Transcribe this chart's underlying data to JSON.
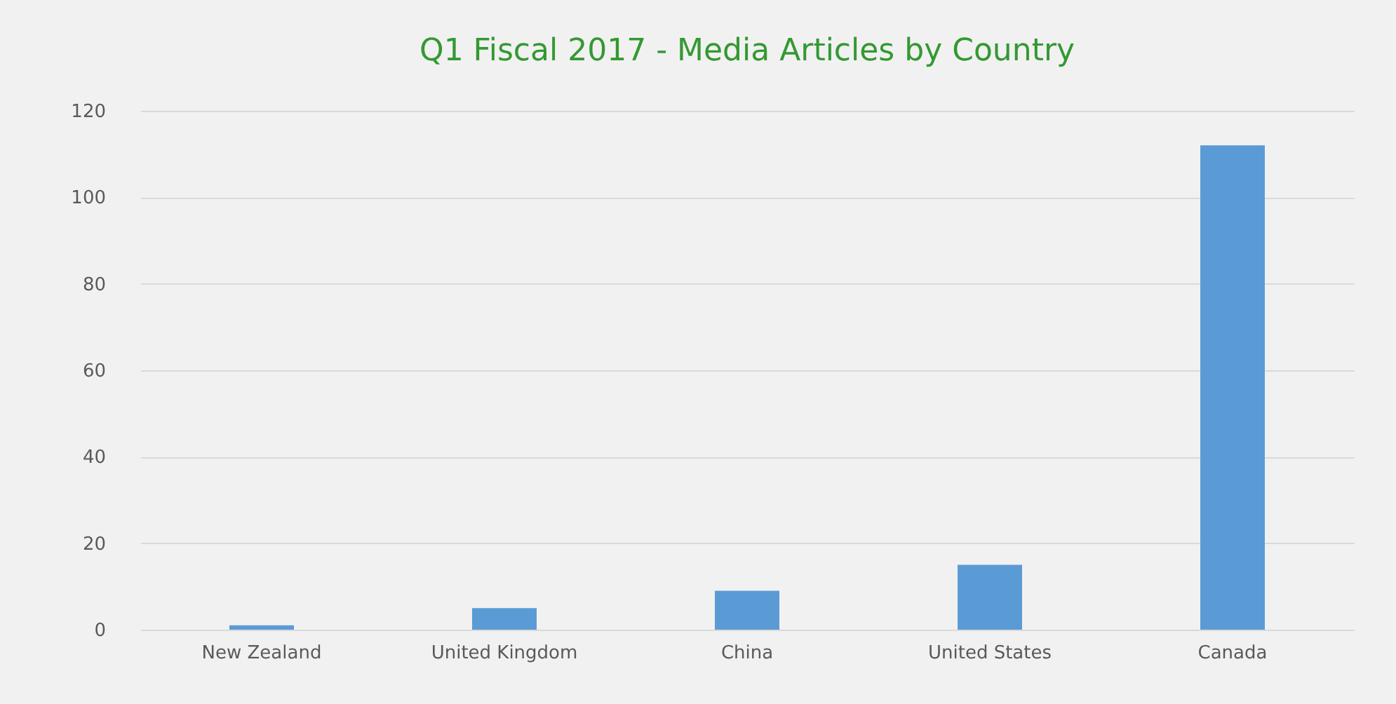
{
  "chart_data": {
    "type": "bar",
    "title": "Q1 Fiscal 2017 - Media Articles by Country",
    "categories": [
      "New Zealand",
      "United Kingdom",
      "China",
      "United States",
      "Canada"
    ],
    "values": [
      1,
      5,
      9,
      15,
      112
    ],
    "color": "#5b9bd5",
    "ylim": [
      0,
      120
    ],
    "yticks": [
      0,
      20,
      40,
      60,
      80,
      100,
      120
    ],
    "grid": "y"
  }
}
